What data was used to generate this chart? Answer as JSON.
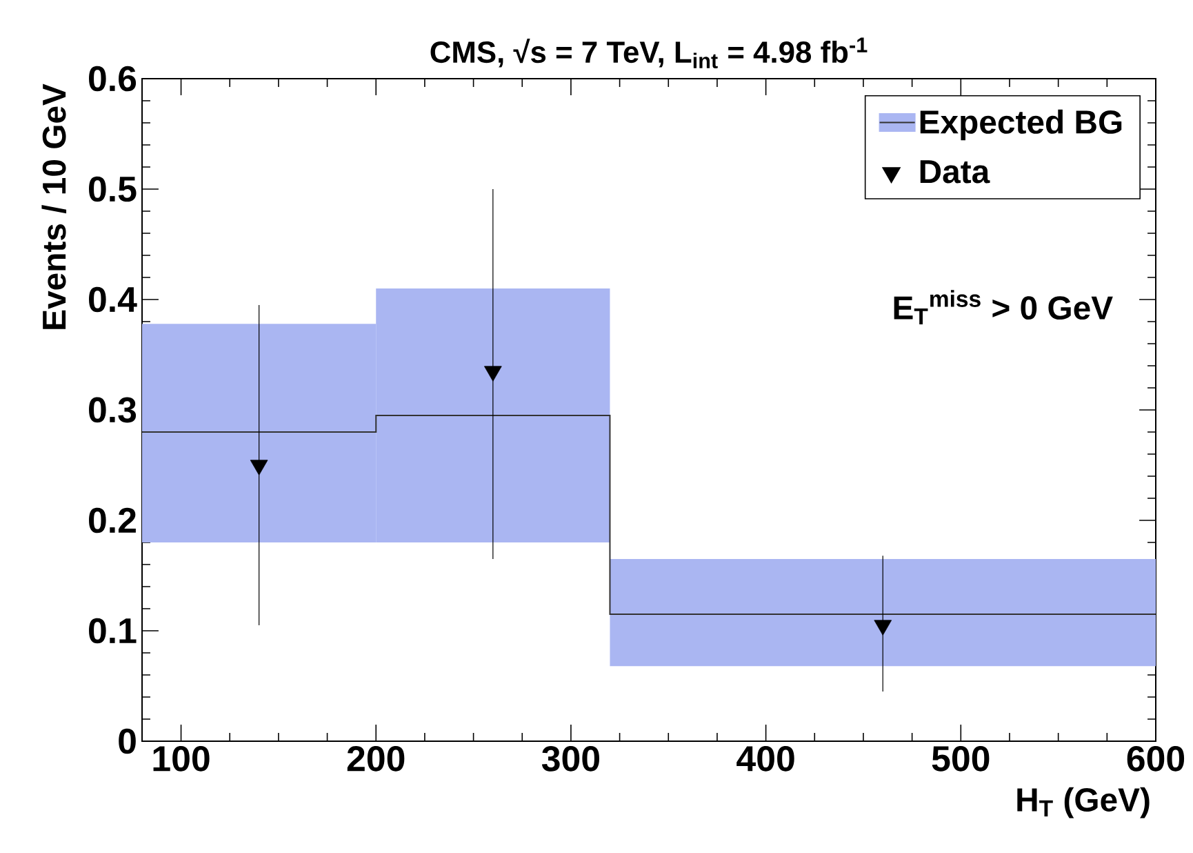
{
  "chart_data": {
    "type": "step",
    "title": "CMS, √s = 7 TeV, L$_{int}$ = 4.98 fb$^{-1}$",
    "xlabel": "H$_{T}$ (GeV)",
    "ylabel": "Events / 10 GeV",
    "annotations": [
      "E$_{T}$$^{miss}$ > 0 GeV"
    ],
    "xlim": [
      80,
      600
    ],
    "xticks": [
      100,
      200,
      300,
      400,
      500,
      600
    ],
    "ylim": [
      0,
      0.6
    ],
    "yticks": [
      0,
      0.1,
      0.2,
      0.3,
      0.4,
      0.5,
      0.6
    ],
    "legend": "top right",
    "series": [
      {
        "name": "Expected BG",
        "color": "#333333",
        "x": [
          80,
          200,
          320,
          600
        ],
        "values": [
          0.28,
          0.295,
          0.115,
          0.115
        ],
        "lower": [
          0.18,
          0.18,
          0.068,
          0.068
        ],
        "upper": [
          0.378,
          0.41,
          0.165,
          0.165
        ]
      },
      {
        "name": "Data",
        "type": "scatter",
        "marker": "triangle",
        "color": "#000000",
        "x": [
          140,
          260,
          460
        ],
        "values": [
          0.25,
          0.335,
          0.105
        ],
        "errors": [
          [
            0.105,
            0.395
          ],
          [
            0.165,
            0.5
          ],
          [
            0.045,
            0.168
          ]
        ]
      }
    ]
  }
}
